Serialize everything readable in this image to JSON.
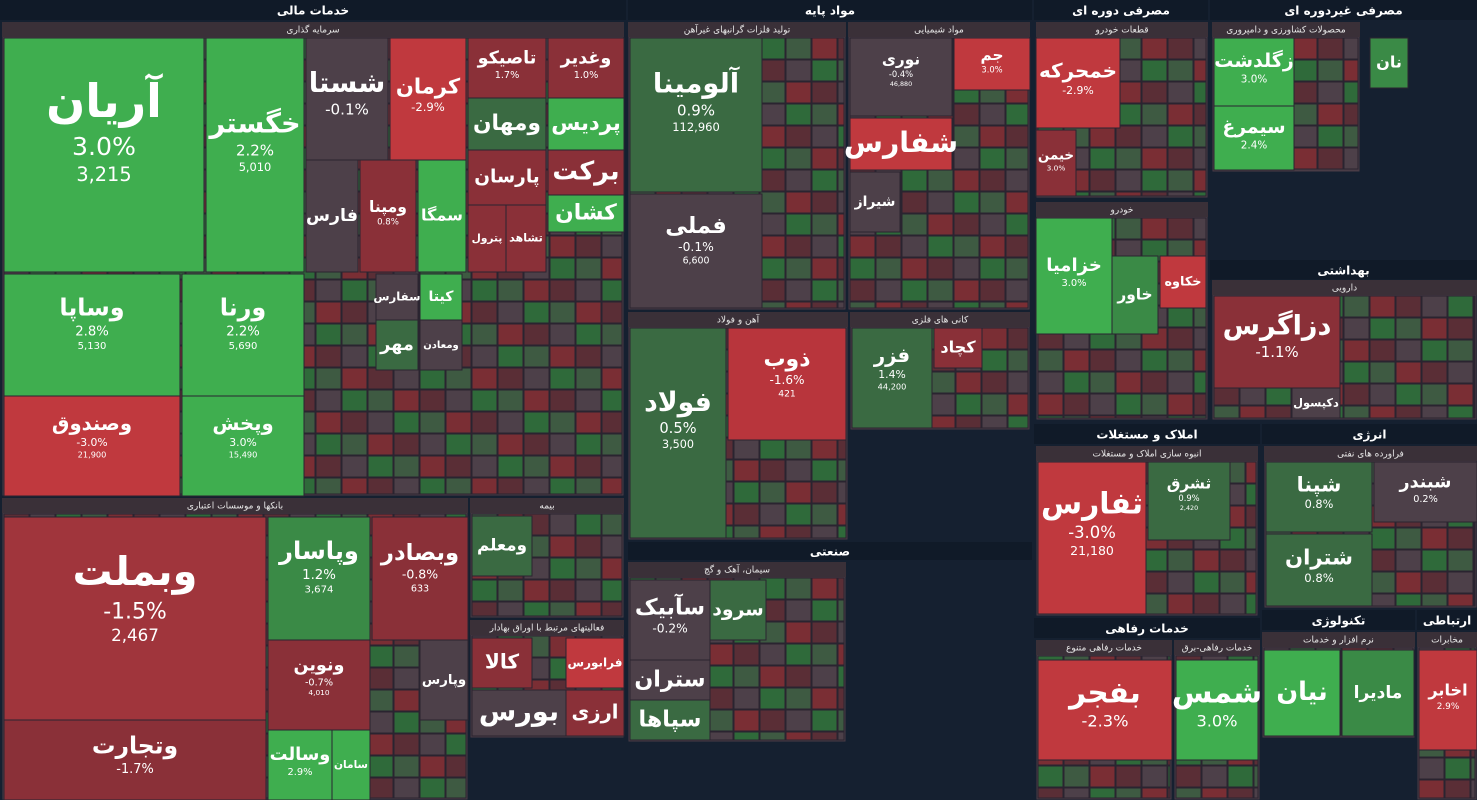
{
  "sectors": [
    {
      "title": "خدمات مالی"
    },
    {
      "title": "مواد پایه"
    },
    {
      "title": "صنعتی"
    },
    {
      "title": "مصرفی دوره ای"
    },
    {
      "title": "مصرفی غیردوره ای"
    },
    {
      "title": "بهداشتی"
    },
    {
      "title": "املاک و مستغلات"
    },
    {
      "title": "انرژی"
    },
    {
      "title": "خدمات رفاهی"
    },
    {
      "title": "تکنولوژی"
    },
    {
      "title": "ارتباطی"
    }
  ],
  "groups": [
    {
      "title": "سرمایه گذاری",
      "tiles": [
        {
          "name": "آریان",
          "change": "3.0%",
          "value": "3,215",
          "color": "#3fae4f"
        },
        {
          "name": "خگستر",
          "change": "2.2%",
          "value": "5,010",
          "color": "#3fae4f"
        },
        {
          "name": "شستا",
          "change": "-0.1%",
          "color": "#4d4049"
        },
        {
          "name": "کرمان",
          "change": "-2.9%",
          "color": "#c0393e"
        },
        {
          "name": "تاصیکو",
          "change": "1.7%",
          "color": "#8a3038"
        },
        {
          "name": "وغدیر",
          "change": "1.0%",
          "color": "#8a3038"
        },
        {
          "name": "ومهان",
          "color": "#3a6a42"
        },
        {
          "name": "پردیس",
          "color": "#3fae4f"
        },
        {
          "name": "فارس",
          "color": "#4d4049"
        },
        {
          "name": "ومپنا",
          "change": "0.8%",
          "color": "#8a3038"
        },
        {
          "name": "سمگا",
          "color": "#3fae4f"
        },
        {
          "name": "پارسان",
          "color": "#8a3038"
        },
        {
          "name": "برکت",
          "color": "#8a3038"
        },
        {
          "name": "کشان",
          "color": "#3fae4f"
        },
        {
          "name": "پترول",
          "color": "#8a3038"
        },
        {
          "name": "تشاهد",
          "color": "#8a3038"
        },
        {
          "name": "وساپا",
          "change": "2.8%",
          "value": "5,130",
          "color": "#3fae4f"
        },
        {
          "name": "ورنا",
          "change": "2.2%",
          "value": "5,690",
          "color": "#3fae4f"
        },
        {
          "name": "وصندوق",
          "change": "-3.0%",
          "value": "21,900",
          "color": "#c0393e"
        },
        {
          "name": "وپخش",
          "change": "3.0%",
          "value": "15,490",
          "color": "#3fae4f"
        },
        {
          "name": "سفارس",
          "color": "#4d4049"
        },
        {
          "name": "مهر",
          "color": "#3a6a42"
        },
        {
          "name": "ومعادن",
          "color": "#4d4049"
        },
        {
          "name": "کیتا",
          "color": "#3fae4f"
        }
      ]
    },
    {
      "title": "بانکها و موسسات اعتباری",
      "tiles": [
        {
          "name": "وبملت",
          "change": "-1.5%",
          "value": "2,467",
          "color": "#a0353c"
        },
        {
          "name": "وتجارت",
          "change": "-1.7%",
          "color": "#8a3038"
        },
        {
          "name": "وپاسار",
          "change": "1.2%",
          "value": "3,674",
          "color": "#3a8a46"
        },
        {
          "name": "وبصادر",
          "change": "-0.8%",
          "value": "633",
          "color": "#8a3038"
        },
        {
          "name": "ونوین",
          "change": "-0.7%",
          "value": "4,010",
          "color": "#8a3038"
        },
        {
          "name": "وسالت",
          "change": "2.9%",
          "color": "#3fae4f"
        },
        {
          "name": "سامان",
          "color": "#3fae4f"
        },
        {
          "name": "وپارس",
          "color": "#4d4049"
        }
      ]
    },
    {
      "title": "بیمه",
      "tiles": [
        {
          "name": "ومعلم",
          "color": "#3a6a42"
        }
      ]
    },
    {
      "title": "فعالیتهای مرتبط با اوراق بهادار",
      "tiles": [
        {
          "name": "کالا",
          "color": "#8a3038"
        },
        {
          "name": "فرابورس",
          "color": "#c0393e"
        },
        {
          "name": "بورس",
          "color": "#4d4049"
        },
        {
          "name": "ارزی",
          "color": "#8a3038"
        }
      ]
    },
    {
      "title": "تولید فلزات گرانبهای غیرآهن",
      "tiles": [
        {
          "name": "آلومینا",
          "change": "0.9%",
          "value": "112,960",
          "color": "#3a6a42"
        },
        {
          "name": "فملی",
          "change": "-0.1%",
          "value": "6,600",
          "color": "#4d4049"
        }
      ]
    },
    {
      "title": "مواد شیمیایی",
      "tiles": [
        {
          "name": "نوری",
          "change": "-0.4%",
          "value": "46,880",
          "color": "#4d4049"
        },
        {
          "name": "جم",
          "change": "3.0%",
          "color": "#c0393e"
        },
        {
          "name": "شفارس",
          "color": "#c0393e"
        },
        {
          "name": "شیراز",
          "color": "#4d4049"
        }
      ]
    },
    {
      "title": "آهن و فولاد",
      "tiles": [
        {
          "name": "فولاد",
          "change": "0.5%",
          "value": "3,500",
          "color": "#3a6a42"
        },
        {
          "name": "ذوب",
          "change": "-1.6%",
          "value": "421",
          "color": "#b8353c"
        }
      ]
    },
    {
      "title": "کانی های فلزی",
      "tiles": [
        {
          "name": "فزر",
          "change": "1.4%",
          "value": "44,200",
          "color": "#3a6a42"
        },
        {
          "name": "کچاد",
          "color": "#8a3038"
        }
      ]
    },
    {
      "title": "سیمان، آهک و گچ",
      "tiles": [
        {
          "name": "سآبیک",
          "change": "-0.2%",
          "color": "#4d4049"
        },
        {
          "name": "سرود",
          "color": "#3a6a42"
        },
        {
          "name": "ستران",
          "color": "#4d4049"
        },
        {
          "name": "سپاها",
          "color": "#3a6a42"
        }
      ]
    },
    {
      "title": "قطعات خودرو",
      "tiles": [
        {
          "name": "خمحرکه",
          "change": "-2.9%",
          "color": "#c0393e"
        },
        {
          "name": "خیمن",
          "change": "3.0%",
          "color": "#8a3038"
        }
      ]
    },
    {
      "title": "خودرو",
      "tiles": [
        {
          "name": "خزامیا",
          "change": "3.0%",
          "color": "#3fae4f"
        },
        {
          "name": "خاور",
          "color": "#3a8a46"
        },
        {
          "name": "خکاوه",
          "color": "#c0393e"
        }
      ]
    },
    {
      "title": "محصولات کشاورزی و دامپروری",
      "tiles": [
        {
          "name": "زگلدشت",
          "change": "3.0%",
          "color": "#3fae4f"
        },
        {
          "name": "سیمرغ",
          "change": "2.4%",
          "color": "#3fae4f"
        },
        {
          "name": "نان",
          "color": "#3a8a46"
        }
      ]
    },
    {
      "title": "دارویی",
      "tiles": [
        {
          "name": "دزاگرس",
          "change": "-1.1%",
          "color": "#8a3038"
        },
        {
          "name": "دکپسول",
          "color": "#4d4049"
        }
      ]
    },
    {
      "title": "انبوه سازی املاک و مستغلات",
      "tiles": [
        {
          "name": "ثفارس",
          "change": "-3.0%",
          "value": "21,180",
          "color": "#c0393e"
        },
        {
          "name": "ثشرق",
          "change": "0.9%",
          "value": "2,420",
          "color": "#3a6a42"
        }
      ]
    },
    {
      "title": "فراورده های نفتی",
      "tiles": [
        {
          "name": "شپنا",
          "change": "0.8%",
          "color": "#3a6a42"
        },
        {
          "name": "شبندر",
          "change": "0.2%",
          "color": "#4d4049"
        },
        {
          "name": "شتران",
          "change": "0.8%",
          "color": "#3a6a42"
        }
      ]
    },
    {
      "title": "خدمات رفاهی متنوع",
      "tiles": [
        {
          "name": "بفجر",
          "change": "-2.3%",
          "color": "#c0393e"
        }
      ]
    },
    {
      "title": "خدمات رفاهی-برق",
      "tiles": [
        {
          "name": "شمس",
          "change": "3.0%",
          "color": "#3fae4f"
        }
      ]
    },
    {
      "title": "نرم افزار و خدمات",
      "tiles": [
        {
          "name": "نیان",
          "color": "#3fae4f"
        },
        {
          "name": "مادیرا",
          "color": "#3a8a46"
        }
      ]
    },
    {
      "title": "مخابرات",
      "tiles": [
        {
          "name": "اخابر",
          "change": "2.9%",
          "color": "#c0393e"
        }
      ]
    }
  ]
}
